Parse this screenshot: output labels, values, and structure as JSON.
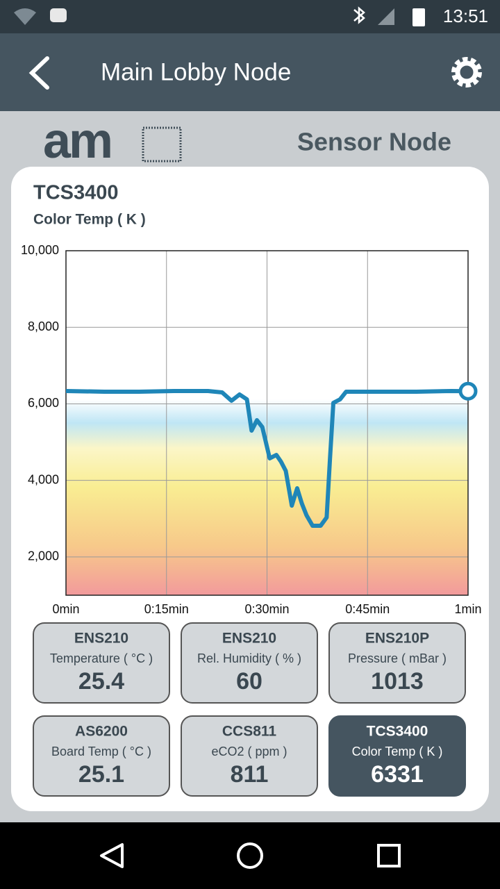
{
  "status_bar": {
    "time": "13:51"
  },
  "app_bar": {
    "title": "Main Lobby Node"
  },
  "header": {
    "brand": "am",
    "subtitle": "Sensor Node"
  },
  "chart_data": {
    "type": "line",
    "title": "TCS3400",
    "subtitle": "Color Temp ( K )",
    "x": [
      0,
      5.7,
      10.9,
      16.1,
      21.2,
      23.3,
      24.7,
      25.9,
      27.0,
      27.7,
      28.5,
      29.3,
      30.4,
      31.4,
      32.1,
      32.8,
      33.7,
      34.5,
      35.2,
      35.9,
      36.8,
      38.0,
      38.9,
      39.4,
      39.9,
      40.9,
      41.8,
      47.2,
      52.3,
      57.5,
      60
    ],
    "series": [
      {
        "name": "Color Temp",
        "color": "#1f86b8",
        "values": [
          6335,
          6317,
          6317,
          6335,
          6335,
          6298,
          6081,
          6244,
          6117,
          5300,
          5572,
          5391,
          4575,
          4665,
          4484,
          4248,
          3341,
          3794,
          3395,
          3087,
          2814,
          2814,
          3032,
          4575,
          6026,
          6117,
          6317,
          6317,
          6317,
          6335,
          6331
        ]
      }
    ],
    "xlim": [
      0,
      60
    ],
    "xticks": [
      {
        "value": 0,
        "label": "0min"
      },
      {
        "value": 15,
        "label": "0:15min"
      },
      {
        "value": 30,
        "label": "0:30min"
      },
      {
        "value": 45,
        "label": "0:45min"
      },
      {
        "value": 60,
        "label": "1min"
      }
    ],
    "ylim": [
      1000,
      10000
    ],
    "yticks": [
      {
        "value": 2000,
        "label": "2,000"
      },
      {
        "value": 4000,
        "label": "4,000"
      },
      {
        "value": 6000,
        "label": "6,000"
      },
      {
        "value": 8000,
        "label": "8,000"
      },
      {
        "value": 10000,
        "label": "10,000"
      }
    ],
    "grid": true
  },
  "tiles": [
    {
      "sensor": "ENS210",
      "label": "Temperature ( °C )",
      "value": 25.4
    },
    {
      "sensor": "ENS210",
      "label": "Rel. Humidity ( % )",
      "value": 60
    },
    {
      "sensor": "ENS210P",
      "label": "Pressure ( mBar )",
      "value": 1013
    },
    {
      "sensor": "AS6200",
      "label": "Board Temp ( °C )",
      "value": 25.1
    },
    {
      "sensor": "CCS811",
      "label": "eCO2 ( ppm )",
      "value": 811
    },
    {
      "sensor": "TCS3400",
      "label": "Color Temp ( K )",
      "value": 6331
    }
  ]
}
